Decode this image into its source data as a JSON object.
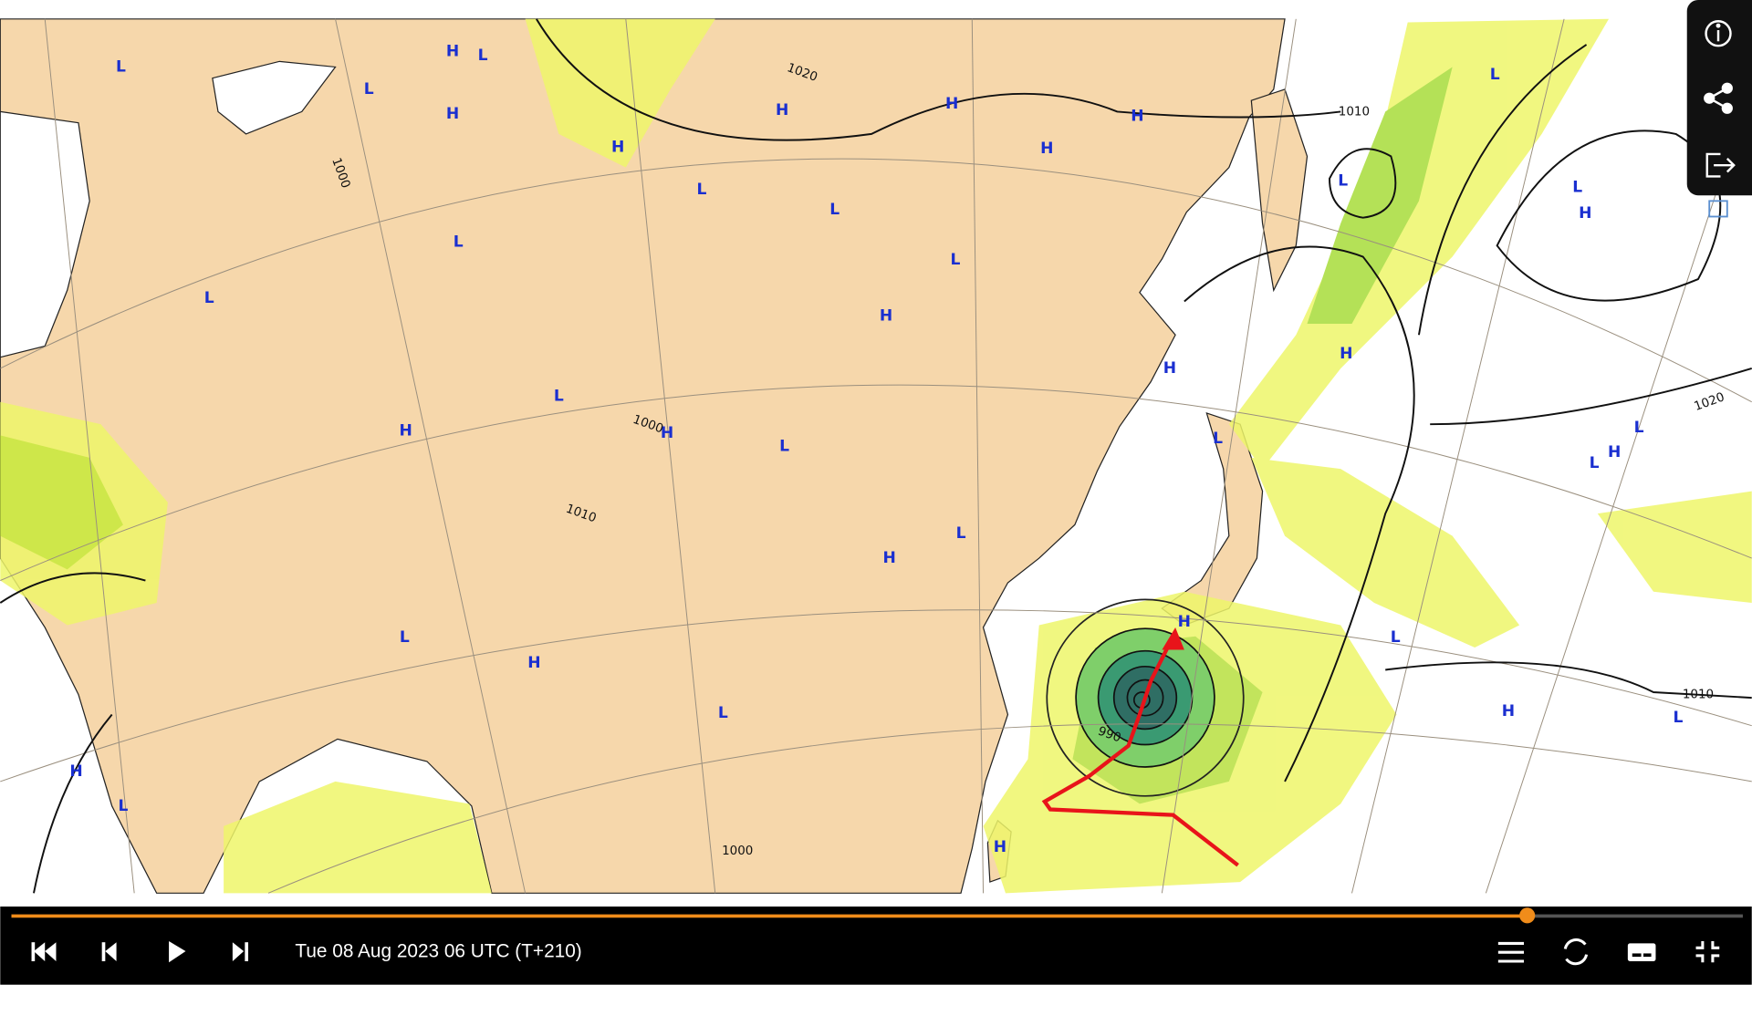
{
  "map_labels": [
    "L",
    "H",
    "L",
    "L",
    "H",
    "H",
    "H",
    "H",
    "H",
    "H",
    "L",
    "L",
    "L",
    "L",
    "L",
    "H",
    "H",
    "L",
    "H",
    "H",
    "L",
    "L",
    "L",
    "H",
    "L",
    "H",
    "L",
    "H",
    "L",
    "H",
    "L",
    "L",
    "H",
    "L",
    "H",
    "L",
    "H",
    "L",
    "L",
    "H",
    "L",
    "H",
    "H"
  ],
  "isobar_labels": [
    "1010",
    "1010",
    "1020",
    "1000",
    "1000",
    "1010",
    "990",
    "1000",
    "1020"
  ],
  "timestamp": "Tue 08 Aug 2023 06 UTC (T+210)"
}
